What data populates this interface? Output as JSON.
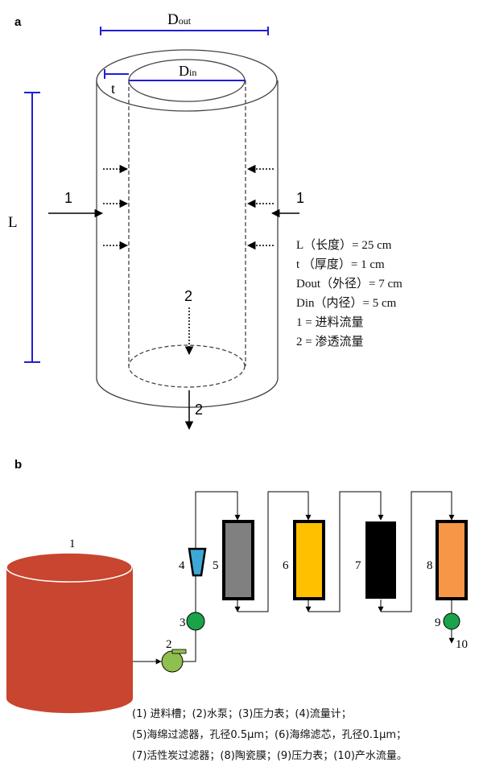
{
  "panel_a": {
    "label": "a",
    "d_out": "D",
    "d_out_sub": "out",
    "d_in": "D",
    "d_in_sub": "in",
    "t": "t",
    "L": "L",
    "feed_left": "1",
    "feed_right": "1",
    "permeate_inner": "2",
    "permeate_outlet": "2",
    "legend": [
      "L（长度）= 25 cm",
      "t （厚度）= 1 cm",
      "Dout（外径）= 7 cm",
      "Din（内径）= 5 cm",
      "1 =  进料流量",
      "2 =  渗透流量"
    ],
    "colors": {
      "dimension": "#1f1fd6"
    }
  },
  "panel_b": {
    "label": "b",
    "numbers": [
      "1",
      "2",
      "3",
      "4",
      "5",
      "6",
      "7",
      "8",
      "9",
      "10"
    ],
    "colors": {
      "tank": "#c8452f",
      "pump": "#8fbf4e",
      "gauge": "#1aa34a",
      "flowmeter": "#3ea7d6",
      "col5": "#808080",
      "col6": "#ffc000",
      "col7": "#000000",
      "col8": "#f79646"
    },
    "caption": [
      "(1) 进料槽；(2)水泵；(3)压力表；(4)流量计；",
      "(5)海绵过滤器，孔径0.5μm；(6)海绵滤芯，孔径0.1μm；",
      "(7)活性炭过滤器；(8)陶瓷膜；(9)压力表；(10)产水流量。"
    ]
  }
}
